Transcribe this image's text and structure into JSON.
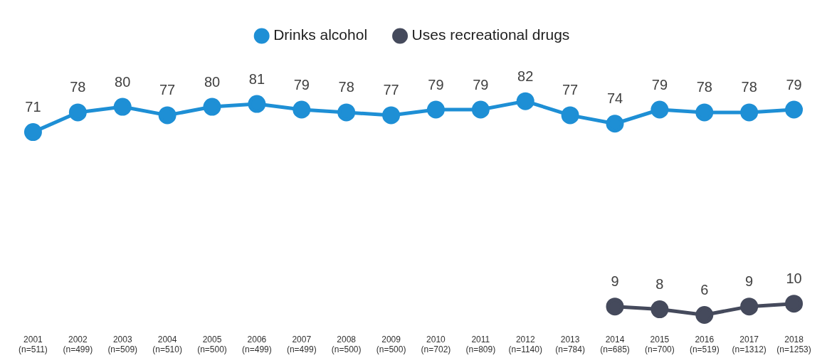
{
  "chart_data": {
    "type": "line",
    "categories": [
      "2001\n(n=511)",
      "2002\n(n=499)",
      "2003\n(n=509)",
      "2004\n(n=510)",
      "2005\n(n=500)",
      "2006\n(n=499)",
      "2007\n(n=499)",
      "2008\n(n=500)",
      "2009\n(n=500)",
      "2010\n(n=702)",
      "2011\n(n=809)",
      "2012\n(n=1140)",
      "2013\n(n=784)",
      "2014\n(n=685)",
      "2015\n(n=700)",
      "2016\n(n=519)",
      "2017\n(n=1312)",
      "2018\n(n=1253)"
    ],
    "series": [
      {
        "name": "Drinks alcohol",
        "color": "#1e8fd5",
        "values": [
          71,
          78,
          80,
          77,
          80,
          81,
          79,
          78,
          77,
          79,
          79,
          82,
          77,
          74,
          79,
          78,
          78,
          79
        ]
      },
      {
        "name": "Uses recreational drugs",
        "color": "#454a5c",
        "values": [
          null,
          null,
          null,
          null,
          null,
          null,
          null,
          null,
          null,
          null,
          null,
          null,
          null,
          9,
          8,
          6,
          9,
          10
        ]
      }
    ],
    "data_labels": true,
    "legend": "top",
    "marker": "circle",
    "grid": false,
    "tick_labels": "x"
  }
}
